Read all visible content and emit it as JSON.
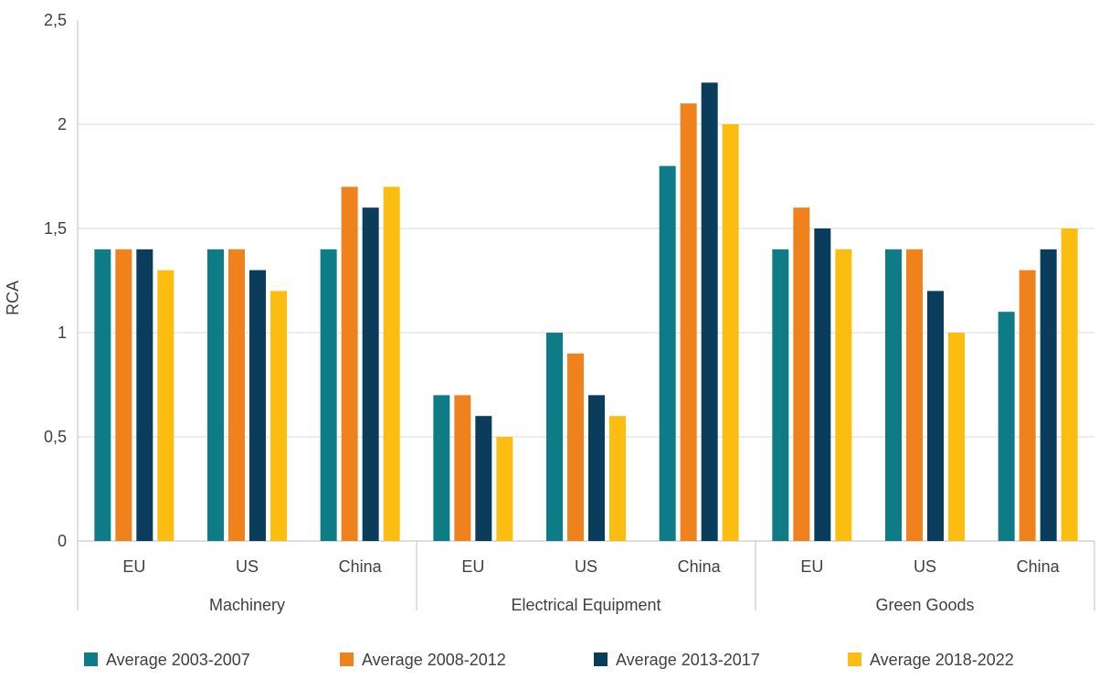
{
  "chart_data": {
    "type": "bar",
    "title": "",
    "xlabel": "",
    "ylabel": "RCA",
    "ylim": [
      0,
      2.5
    ],
    "yticks": [
      {
        "value": 0,
        "label": "0"
      },
      {
        "value": 0.5,
        "label": "0,5"
      },
      {
        "value": 1,
        "label": "1"
      },
      {
        "value": 1.5,
        "label": "1,5"
      },
      {
        "value": 2,
        "label": "2"
      },
      {
        "value": 2.5,
        "label": "2,5"
      }
    ],
    "grid": true,
    "legend_position": "bottom",
    "groups": [
      {
        "label": "Machinery",
        "categories": [
          "EU",
          "US",
          "China"
        ]
      },
      {
        "label": "Electrical Equipment",
        "categories": [
          "EU",
          "US",
          "China"
        ]
      },
      {
        "label": "Green Goods",
        "categories": [
          "EU",
          "US",
          "China"
        ]
      }
    ],
    "series": [
      {
        "name": "Average 2003-2007",
        "color": "#0E7C86",
        "values": [
          1.4,
          1.4,
          1.4,
          0.7,
          1.0,
          1.8,
          1.4,
          1.4,
          1.1
        ]
      },
      {
        "name": "Average 2008-2012",
        "color": "#F0821E",
        "values": [
          1.4,
          1.4,
          1.7,
          0.7,
          0.9,
          2.1,
          1.6,
          1.4,
          1.3
        ]
      },
      {
        "name": "Average 2013-2017",
        "color": "#0A3D5C",
        "values": [
          1.4,
          1.3,
          1.6,
          0.6,
          0.7,
          2.2,
          1.5,
          1.2,
          1.4
        ]
      },
      {
        "name": "Average 2018-2022",
        "color": "#FBBE10",
        "values": [
          1.3,
          1.2,
          1.7,
          0.5,
          0.6,
          2.0,
          1.4,
          1.0,
          1.5
        ]
      }
    ]
  }
}
